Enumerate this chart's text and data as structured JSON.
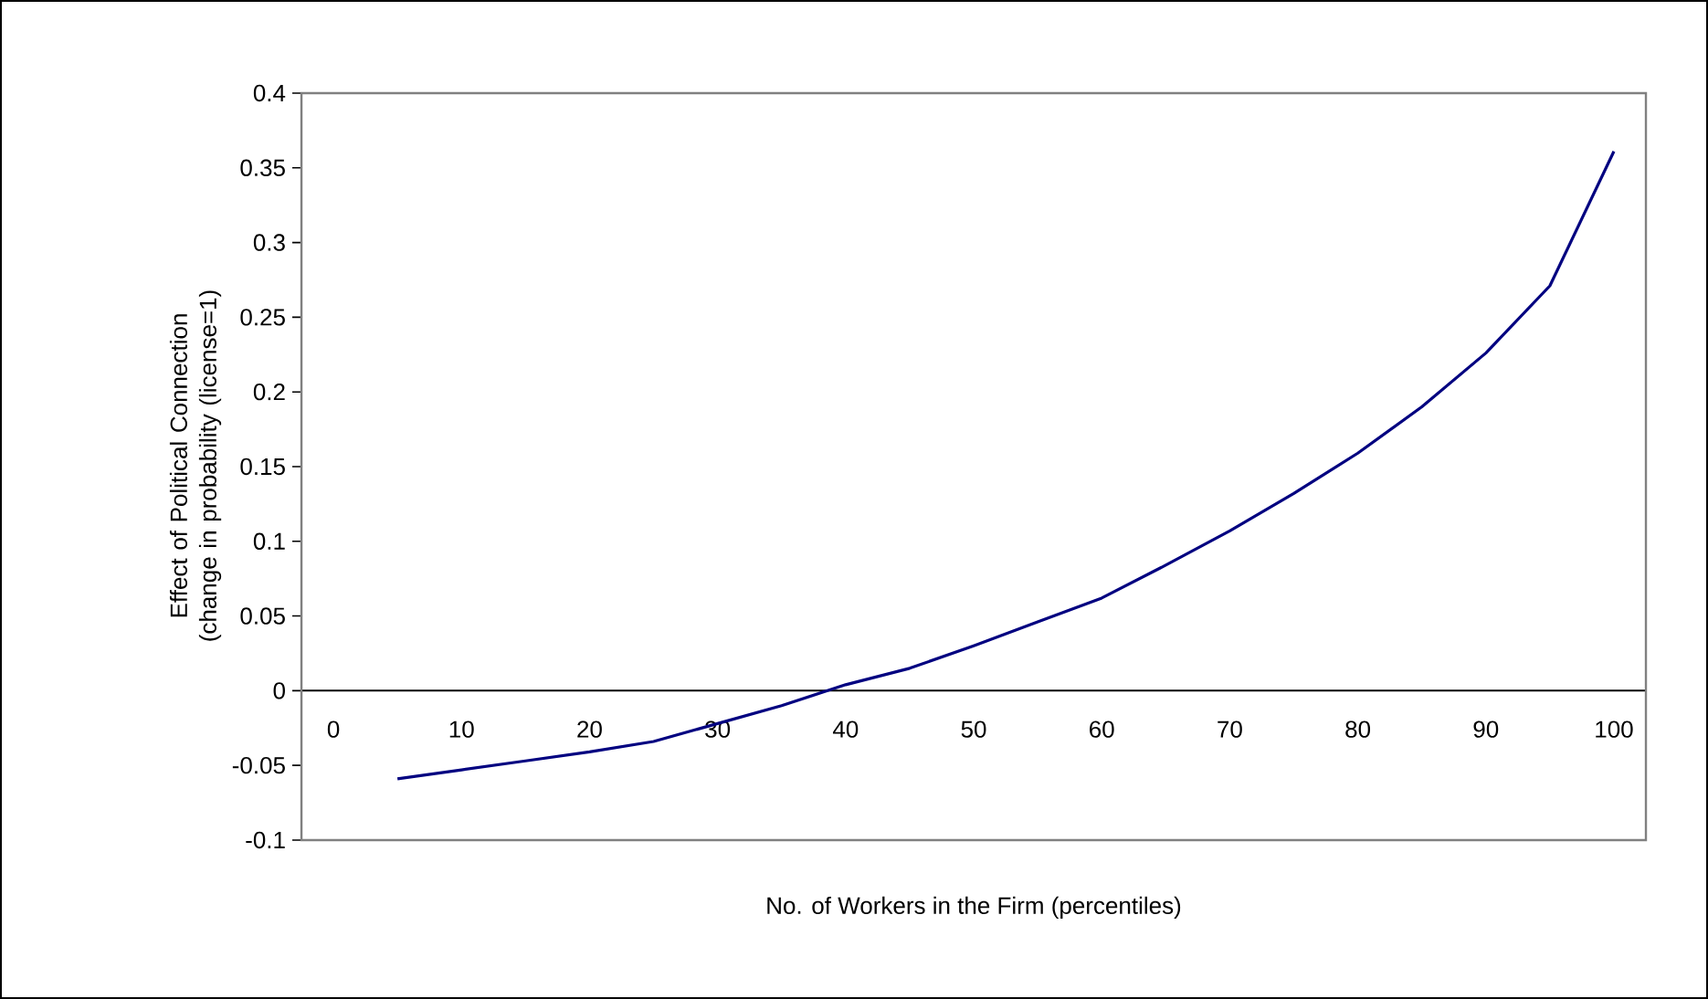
{
  "chart_data": {
    "type": "line",
    "xlabel": "No. of Workers in the Firm (percentiles)",
    "ylabel": "Effect of Political Connection (change in probability (license=1)",
    "categories": [
      "0",
      null,
      "10",
      null,
      "20",
      null,
      "30",
      null,
      "40",
      null,
      "50",
      null,
      "60",
      null,
      "70",
      null,
      "80",
      null,
      "90",
      null,
      "100"
    ],
    "series": [
      {
        "color": "#000080",
        "values": [
          null,
          -0.059,
          -0.053,
          -0.047,
          -0.041,
          -0.034,
          -0.022,
          -0.01,
          0.004,
          0.015,
          0.03,
          0.046,
          0.062,
          0.084,
          0.107,
          0.132,
          0.159,
          0.19,
          0.226,
          0.271,
          0.361
        ]
      }
    ],
    "ylim": [
      -0.1,
      0.4
    ],
    "yticks": [
      -0.1,
      -0.05,
      0,
      0.05,
      0.1,
      0.15,
      0.2,
      0.25,
      0.3,
      0.35,
      0.4
    ],
    "grid": false
  }
}
